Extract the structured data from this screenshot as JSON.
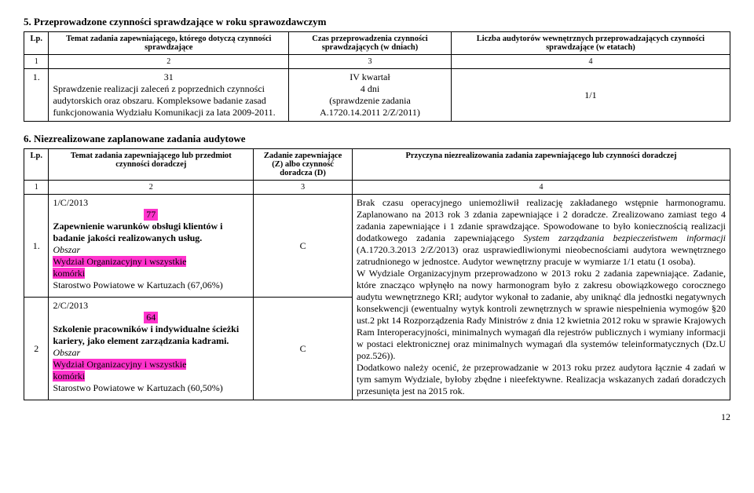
{
  "section5": {
    "title": "5. Przeprowadzone czynności sprawdzające w roku sprawozdawczym",
    "headers": {
      "lp": "Lp.",
      "b": "Temat zadania zapewniającego, którego dotyczą czynności sprawdzające",
      "c": "Czas przeprowadzenia czynności sprawdzających (w dniach)",
      "d": "Liczba audytorów wewnętrznych przeprowadzających czynności sprawdzające (w etatach)"
    },
    "numrow": [
      "1",
      "2",
      "3",
      "4"
    ],
    "row1": {
      "lp": "1.",
      "b_num": "31",
      "b_text": "Sprawdzenie realizacji zaleceń z poprzednich czynności audytorskich oraz obszaru. Kompleksowe badanie zasad funkcjonowania Wydziału Komunikacji za lata 2009-2011.",
      "c_line1": "IV kwartał",
      "c_line2": "4 dni",
      "c_line3": "(sprawdzenie zadania",
      "c_line4": "A.1720.14.2011 2/Z/2011)",
      "d": "1/1"
    }
  },
  "section6": {
    "title": "6. Niezrealizowane zaplanowane zadania audytowe",
    "headers": {
      "lp": "Lp.",
      "b": "Temat zadania zapewniającego lub przedmiot czynności doradczej",
      "c": "Zadanie zapewniające (Z) albo czynność doradcza (D)",
      "d": "Przyczyna niezrealizowania zadania zapewniającego lub czynności doradczej"
    },
    "numrow": [
      "1",
      "2",
      "3",
      "4"
    ],
    "row1": {
      "lp": "1.",
      "code": "1/C/2013",
      "num": "77",
      "bold": "Zapewnienie warunków obsługi klientów i badanie jakości realizowanych usług.",
      "obszar_label": "Obszar",
      "hl1": "Wydział Organizacyjny i wszystkie",
      "hl2": "komórki",
      "tail": "Starostwo Powiatowe w Kartuzach (67,06%)",
      "c": "C"
    },
    "row2": {
      "lp": "2",
      "code": "2/C/2013",
      "num": "64",
      "bold": "Szkolenie pracowników i indywidualne ścieżki kariery, jako element zarządzania kadrami.",
      "obszar_label": "Obszar",
      "hl1": "Wydział Organizacyjny i wszystkie",
      "hl2": "komórki",
      "tail": "Starostwo Powiatowe w Kartuzach (60,50%)",
      "c": "C"
    },
    "reason": "Brak czasu operacyjnego uniemożliwił realizację zakładanego wstępnie harmonogramu. Zaplanowano na 2013 rok 3 zdania zapewniające i 2 doradcze. Zrealizowano zamiast tego 4 zadania zapewniające i 1 zdanie sprawdzające. Spowodowane to było koniecznością realizacji dodatkowego zadania zapewniającego System zarządzania bezpieczeństwem informacji (A.1720.3.2013 2/Z/2013) oraz usprawiedliwionymi nieobecnościami audytora wewnętrznego zatrudnionego w jednostce. Audytor wewnętrzny pracuje w wymiarze 1/1 etatu (1 osoba).\nW Wydziale Organizacyjnym przeprowadzono w 2013 roku 2 zadania zapewniające. Zadanie, które znacząco wpłynęło na nowy harmonogram było z zakresu obowiązkowego corocznego audytu wewnętrznego KRI; audytor wykonał to zadanie, aby uniknąć dla jednostki negatywnych konsekwencji (ewentualny wytyk kontroli zewnętrznych w sprawie niespełnienia wymogów §20 ust.2 pkt 14 Rozporządzenia Rady Ministrów z dnia 12 kwietnia 2012 roku w sprawie Krajowych Ram Interoperacyjności, minimalnych wymagań dla rejestrów publicznych i wymiany informacji w postaci elektronicznej oraz minimalnych wymagań dla systemów teleinformatycznych (Dz.U poz.526)).\nDodatkowo należy ocenić, że przeprowadzanie w 2013 roku przez audytora łącznie 4 zadań w tym samym Wydziale, byłoby zbędne i nieefektywne. Realizacja wskazanych zadań doradczych przesunięta jest na 2015 rok."
  },
  "reason_italic": "System zarządzania bezpieczeństwem informacji",
  "pagenum": "12"
}
